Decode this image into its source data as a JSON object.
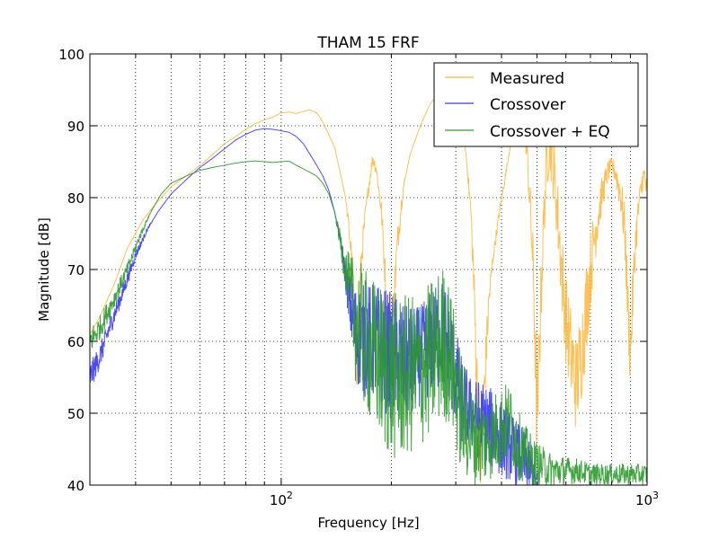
{
  "chart_data": {
    "type": "line",
    "title": "THAM 15 FRF",
    "xlabel": "Frequency [Hz]",
    "ylabel": "Magnitude [dB]",
    "xscale": "log",
    "xlim": [
      30,
      1000
    ],
    "ylim": [
      40,
      100
    ],
    "yticks": [
      40,
      50,
      60,
      70,
      80,
      90,
      100
    ],
    "xticks": [
      {
        "value": 100,
        "base": "10",
        "exp": "2"
      },
      {
        "value": 1000,
        "base": "10",
        "exp": "3"
      }
    ],
    "grid": true,
    "legend_position": "upper right",
    "series": [
      {
        "name": "Measured",
        "color": "#fbb537",
        "points": [
          [
            30,
            61
          ],
          [
            32,
            63.5
          ],
          [
            35,
            68
          ],
          [
            38,
            73
          ],
          [
            42,
            77
          ],
          [
            46,
            79.5
          ],
          [
            50,
            81.5
          ],
          [
            55,
            83
          ],
          [
            60,
            84.5
          ],
          [
            65,
            86
          ],
          [
            70,
            87.5
          ],
          [
            75,
            88.5
          ],
          [
            80,
            89.5
          ],
          [
            85,
            90.3
          ],
          [
            90,
            90.8
          ],
          [
            95,
            91.2
          ],
          [
            100,
            91.8
          ],
          [
            105,
            91.9
          ],
          [
            110,
            91.7
          ],
          [
            115,
            92
          ],
          [
            120,
            92.2
          ],
          [
            125,
            91.8
          ],
          [
            130,
            90.5
          ],
          [
            140,
            87
          ],
          [
            150,
            80
          ],
          [
            155,
            73
          ],
          [
            158,
            64
          ],
          [
            160,
            57
          ],
          [
            163,
            64
          ],
          [
            166,
            72
          ],
          [
            170,
            78
          ],
          [
            175,
            83
          ],
          [
            178,
            85.5
          ],
          [
            182,
            84
          ],
          [
            188,
            78
          ],
          [
            192,
            70
          ],
          [
            195,
            62
          ],
          [
            198,
            55
          ],
          [
            202,
            64
          ],
          [
            208,
            74
          ],
          [
            215,
            81
          ],
          [
            225,
            86
          ],
          [
            240,
            90
          ],
          [
            255,
            93
          ],
          [
            270,
            94.5
          ],
          [
            285,
            95
          ],
          [
            300,
            94.5
          ],
          [
            310,
            91
          ],
          [
            320,
            86
          ],
          [
            330,
            78
          ],
          [
            335,
            70
          ],
          [
            340,
            60
          ],
          [
            345,
            50
          ],
          [
            350,
            42
          ],
          [
            360,
            55
          ],
          [
            370,
            66
          ],
          [
            380,
            72
          ],
          [
            395,
            78
          ],
          [
            410,
            83
          ],
          [
            425,
            88
          ],
          [
            440,
            92
          ],
          [
            450,
            93.5
          ],
          [
            460,
            91
          ],
          [
            470,
            86
          ],
          [
            480,
            78
          ],
          [
            490,
            68
          ],
          [
            495,
            58
          ],
          [
            500,
            48
          ],
          [
            508,
            60
          ],
          [
            520,
            75
          ],
          [
            530,
            84
          ],
          [
            540,
            88
          ],
          [
            550,
            86
          ],
          [
            565,
            80
          ],
          [
            580,
            72
          ],
          [
            600,
            63
          ],
          [
            620,
            58
          ],
          [
            640,
            54
          ],
          [
            660,
            58
          ],
          [
            680,
            64
          ],
          [
            700,
            70
          ],
          [
            720,
            75
          ],
          [
            750,
            80
          ],
          [
            780,
            83.5
          ],
          [
            800,
            84.5
          ],
          [
            820,
            83.5
          ],
          [
            850,
            80
          ],
          [
            870,
            75
          ],
          [
            885,
            65
          ],
          [
            900,
            58
          ],
          [
            915,
            67
          ],
          [
            930,
            74
          ],
          [
            950,
            79
          ],
          [
            970,
            82.5
          ],
          [
            985,
            83
          ],
          [
            1000,
            80
          ]
        ],
        "noise": [
          [
            150,
            0
          ],
          [
            160,
            5
          ],
          [
            170,
            1
          ],
          [
            185,
            1
          ],
          [
            200,
            4
          ],
          [
            220,
            0
          ],
          [
            320,
            0
          ],
          [
            330,
            2
          ],
          [
            345,
            6
          ],
          [
            360,
            4
          ],
          [
            380,
            1
          ],
          [
            440,
            0
          ],
          [
            470,
            2
          ],
          [
            490,
            5
          ],
          [
            500,
            8
          ],
          [
            520,
            4
          ],
          [
            560,
            5
          ],
          [
            620,
            7
          ],
          [
            680,
            7
          ],
          [
            740,
            3
          ],
          [
            800,
            1
          ],
          [
            850,
            3
          ],
          [
            900,
            5
          ],
          [
            950,
            2
          ],
          [
            1000,
            2
          ]
        ]
      },
      {
        "name": "Crossover",
        "color": "#3838f5",
        "points": [
          [
            30,
            55
          ],
          [
            32,
            58
          ],
          [
            34,
            62
          ],
          [
            37,
            67
          ],
          [
            40,
            72
          ],
          [
            43,
            75.5
          ],
          [
            46,
            78
          ],
          [
            50,
            80.5
          ],
          [
            55,
            82.5
          ],
          [
            60,
            84.2
          ],
          [
            65,
            85.5
          ],
          [
            70,
            86.8
          ],
          [
            75,
            88
          ],
          [
            80,
            88.8
          ],
          [
            85,
            89.4
          ],
          [
            90,
            89.6
          ],
          [
            95,
            89.5
          ],
          [
            100,
            89.3
          ],
          [
            105,
            89.1
          ],
          [
            110,
            88.5
          ],
          [
            115,
            87.5
          ],
          [
            120,
            86
          ],
          [
            125,
            84.5
          ],
          [
            130,
            83
          ],
          [
            135,
            81
          ],
          [
            140,
            78
          ],
          [
            145,
            74
          ],
          [
            150,
            69
          ],
          [
            155,
            64.5
          ],
          [
            160,
            61
          ],
          [
            165,
            60.5
          ],
          [
            170,
            60
          ],
          [
            180,
            60
          ],
          [
            190,
            59
          ],
          [
            200,
            58
          ],
          [
            220,
            57
          ],
          [
            240,
            58
          ],
          [
            260,
            60
          ],
          [
            275,
            61
          ],
          [
            285,
            60
          ],
          [
            295,
            57
          ],
          [
            310,
            52
          ],
          [
            330,
            50
          ],
          [
            350,
            49
          ],
          [
            370,
            48
          ],
          [
            390,
            47
          ],
          [
            410,
            46
          ],
          [
            430,
            45
          ],
          [
            450,
            44
          ],
          [
            470,
            43
          ],
          [
            500,
            40
          ]
        ],
        "noise": [
          [
            30,
            2
          ],
          [
            38,
            1
          ],
          [
            45,
            0
          ],
          [
            140,
            0
          ],
          [
            150,
            2
          ],
          [
            160,
            7
          ],
          [
            170,
            8
          ],
          [
            200,
            9
          ],
          [
            240,
            7
          ],
          [
            280,
            8
          ],
          [
            300,
            7
          ],
          [
            330,
            5
          ],
          [
            360,
            6
          ],
          [
            420,
            5
          ],
          [
            470,
            4
          ],
          [
            500,
            2
          ]
        ]
      },
      {
        "name": "Crossover + EQ",
        "color": "#2e9a2e",
        "points": [
          [
            30,
            60
          ],
          [
            32,
            62
          ],
          [
            35,
            66
          ],
          [
            38,
            70
          ],
          [
            41,
            74.5
          ],
          [
            44,
            78
          ],
          [
            47,
            80.5
          ],
          [
            50,
            82
          ],
          [
            55,
            83
          ],
          [
            60,
            83.8
          ],
          [
            65,
            84.2
          ],
          [
            70,
            84.5
          ],
          [
            75,
            84.8
          ],
          [
            80,
            85
          ],
          [
            85,
            85.1
          ],
          [
            90,
            85
          ],
          [
            95,
            84.9
          ],
          [
            100,
            85
          ],
          [
            105,
            85.1
          ],
          [
            110,
            84.5
          ],
          [
            115,
            84
          ],
          [
            120,
            83.5
          ],
          [
            125,
            83
          ],
          [
            130,
            82
          ],
          [
            135,
            80.5
          ],
          [
            140,
            78
          ],
          [
            145,
            74
          ],
          [
            150,
            70
          ],
          [
            155,
            66
          ],
          [
            160,
            63
          ],
          [
            170,
            60
          ],
          [
            180,
            58
          ],
          [
            200,
            55
          ],
          [
            220,
            55
          ],
          [
            240,
            56
          ],
          [
            260,
            58
          ],
          [
            275,
            60
          ],
          [
            285,
            59
          ],
          [
            295,
            56
          ],
          [
            310,
            50
          ],
          [
            330,
            47
          ],
          [
            360,
            46
          ],
          [
            380,
            47
          ],
          [
            400,
            48
          ],
          [
            420,
            49
          ],
          [
            440,
            46
          ],
          [
            470,
            44
          ],
          [
            500,
            43
          ],
          [
            550,
            42
          ],
          [
            600,
            42
          ],
          [
            650,
            42
          ],
          [
            700,
            41.5
          ],
          [
            800,
            41.5
          ],
          [
            900,
            41.5
          ],
          [
            1000,
            41.5
          ]
        ],
        "noise": [
          [
            30,
            2
          ],
          [
            38,
            1
          ],
          [
            45,
            0
          ],
          [
            140,
            0
          ],
          [
            150,
            3
          ],
          [
            160,
            9
          ],
          [
            170,
            10
          ],
          [
            200,
            12
          ],
          [
            240,
            11
          ],
          [
            280,
            11
          ],
          [
            300,
            9
          ],
          [
            330,
            7
          ],
          [
            360,
            6
          ],
          [
            400,
            6
          ],
          [
            440,
            5
          ],
          [
            500,
            3
          ],
          [
            600,
            2
          ],
          [
            700,
            1.5
          ],
          [
            800,
            1.5
          ],
          [
            1000,
            1.5
          ]
        ]
      }
    ]
  }
}
